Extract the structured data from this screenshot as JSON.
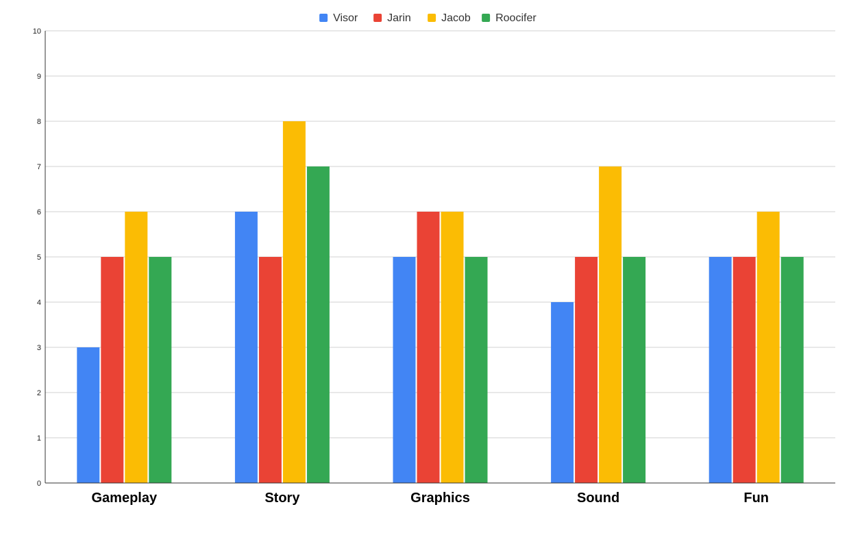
{
  "chart_data": {
    "type": "bar",
    "title": "",
    "xlabel": "",
    "ylabel": "",
    "categories": [
      "Gameplay",
      "Story",
      "Graphics",
      "Sound",
      "Fun"
    ],
    "series": [
      {
        "name": "Visor",
        "color": "#4285F4",
        "values": [
          3,
          6,
          5,
          4,
          5
        ]
      },
      {
        "name": "Jarin",
        "color": "#EA4335",
        "values": [
          5,
          5,
          6,
          5,
          5
        ]
      },
      {
        "name": "Jacob",
        "color": "#FBBC04",
        "values": [
          6,
          8,
          6,
          7,
          6
        ]
      },
      {
        "name": "Roocifer",
        "color": "#34A853",
        "values": [
          5,
          7,
          5,
          5,
          5
        ]
      }
    ],
    "ylim": [
      0,
      10
    ],
    "yticks": [
      "0",
      "1",
      "2",
      "3",
      "4",
      "5",
      "6",
      "7",
      "8",
      "9",
      "10"
    ],
    "grid": true,
    "legend_position": "top"
  }
}
